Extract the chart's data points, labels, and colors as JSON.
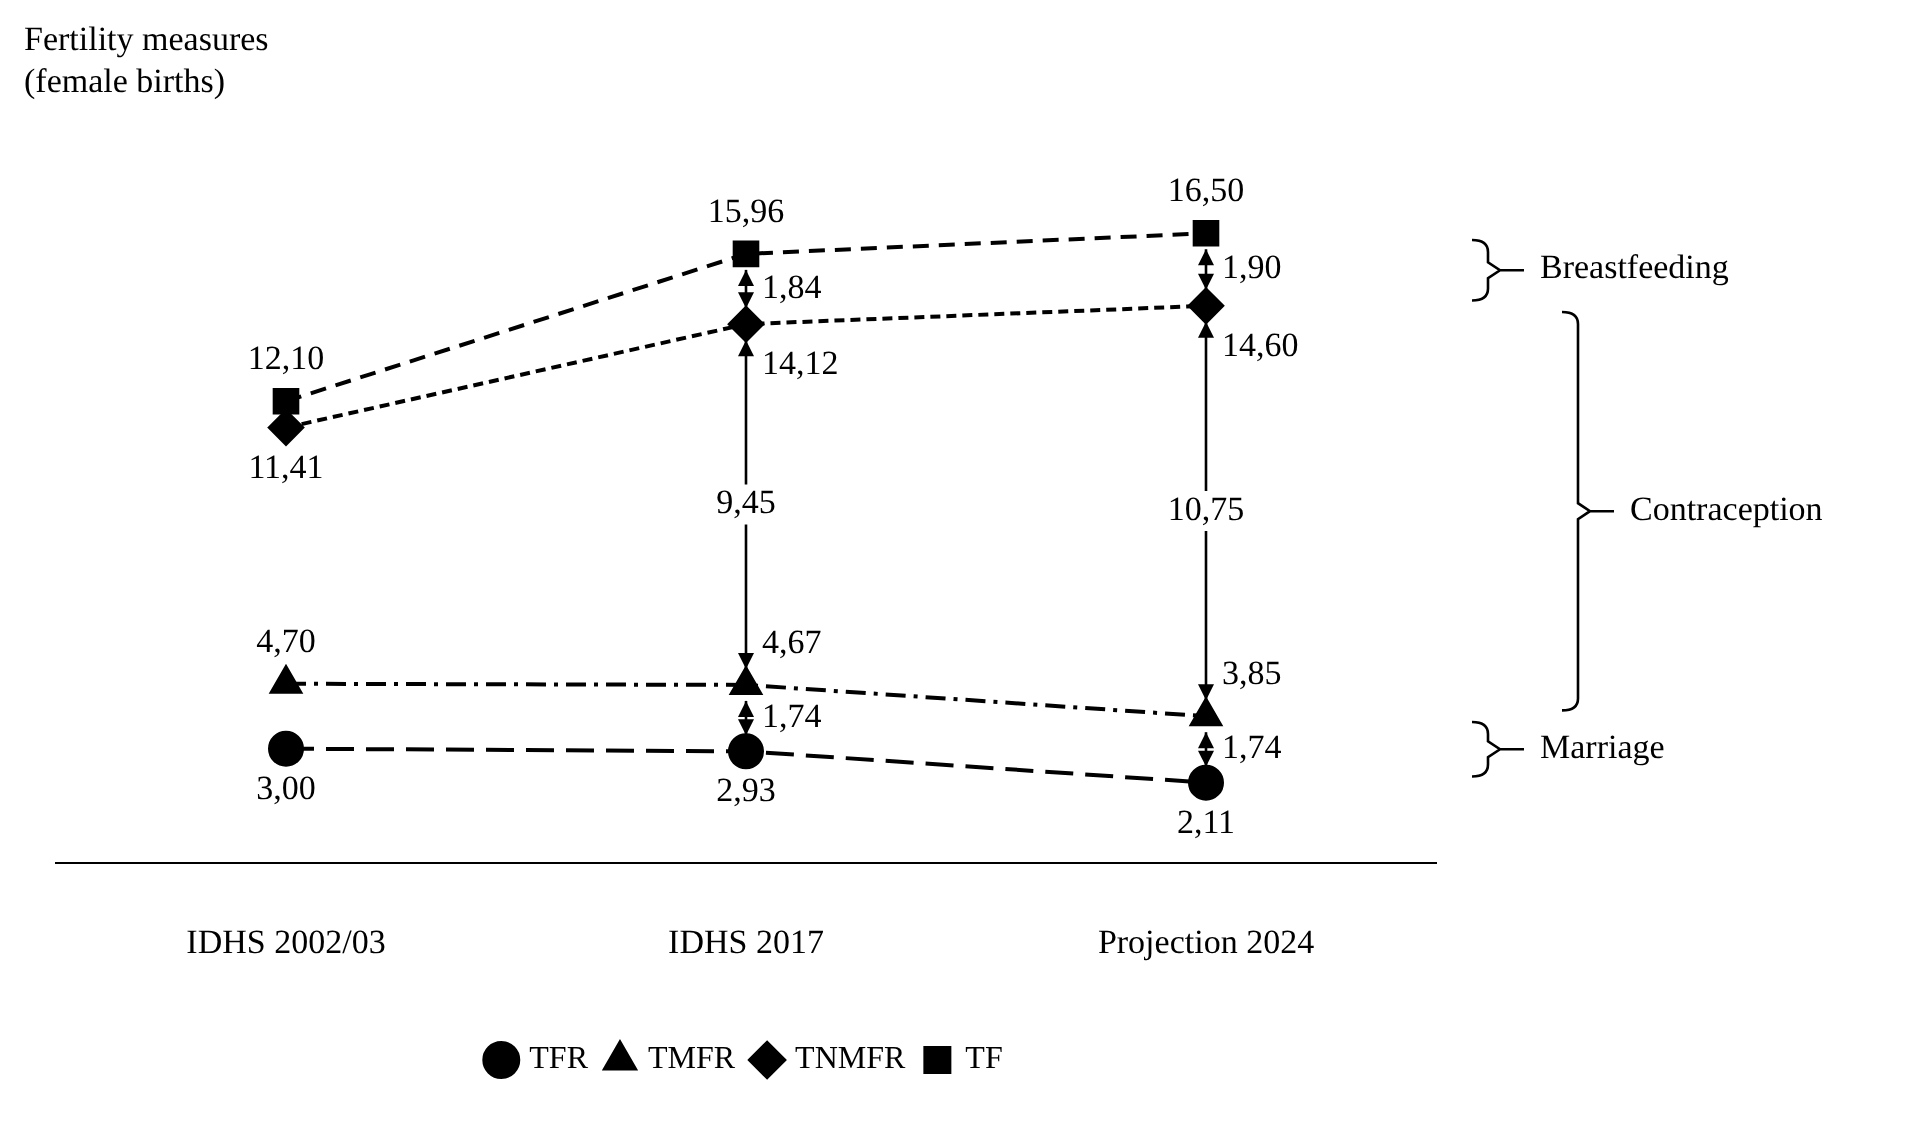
{
  "chart_data": {
    "type": "line",
    "ylabel": "Fertility measures (female births)",
    "categories": [
      "IDHS 2002/03",
      "IDHS 2017",
      "Projection 2024"
    ],
    "series": [
      {
        "name": "TFR",
        "color": "#000000",
        "values": [
          3.0,
          2.93,
          2.11
        ],
        "value_labels": [
          "3,00",
          "2,93",
          "2,11"
        ],
        "marker": "circle",
        "line_style": "longdash"
      },
      {
        "name": "TMFR",
        "color": "#000000",
        "values": [
          4.7,
          4.67,
          3.85
        ],
        "value_labels": [
          "4,70",
          "4,67",
          "3,85"
        ],
        "marker": "triangle",
        "line_style": "dashdot"
      },
      {
        "name": "TNMFR",
        "color": "#000000",
        "values": [
          11.41,
          14.12,
          14.6
        ],
        "value_labels": [
          "11,41",
          "14,12",
          "14,60"
        ],
        "marker": "diamond",
        "line_style": "shortdash"
      },
      {
        "name": "TF",
        "color": "#000000",
        "values": [
          12.1,
          15.96,
          16.5
        ],
        "value_labels": [
          "12,10",
          "15,96",
          "16,50"
        ],
        "marker": "square",
        "line_style": "dashed"
      }
    ],
    "annotations": [
      "1,84",
      "9,45",
      "1,74",
      "1,90",
      "10,75",
      "1,74",
      "Breastfeeding",
      "Contraception",
      "Marriage"
    ],
    "grid": false,
    "legend": "bottom"
  }
}
